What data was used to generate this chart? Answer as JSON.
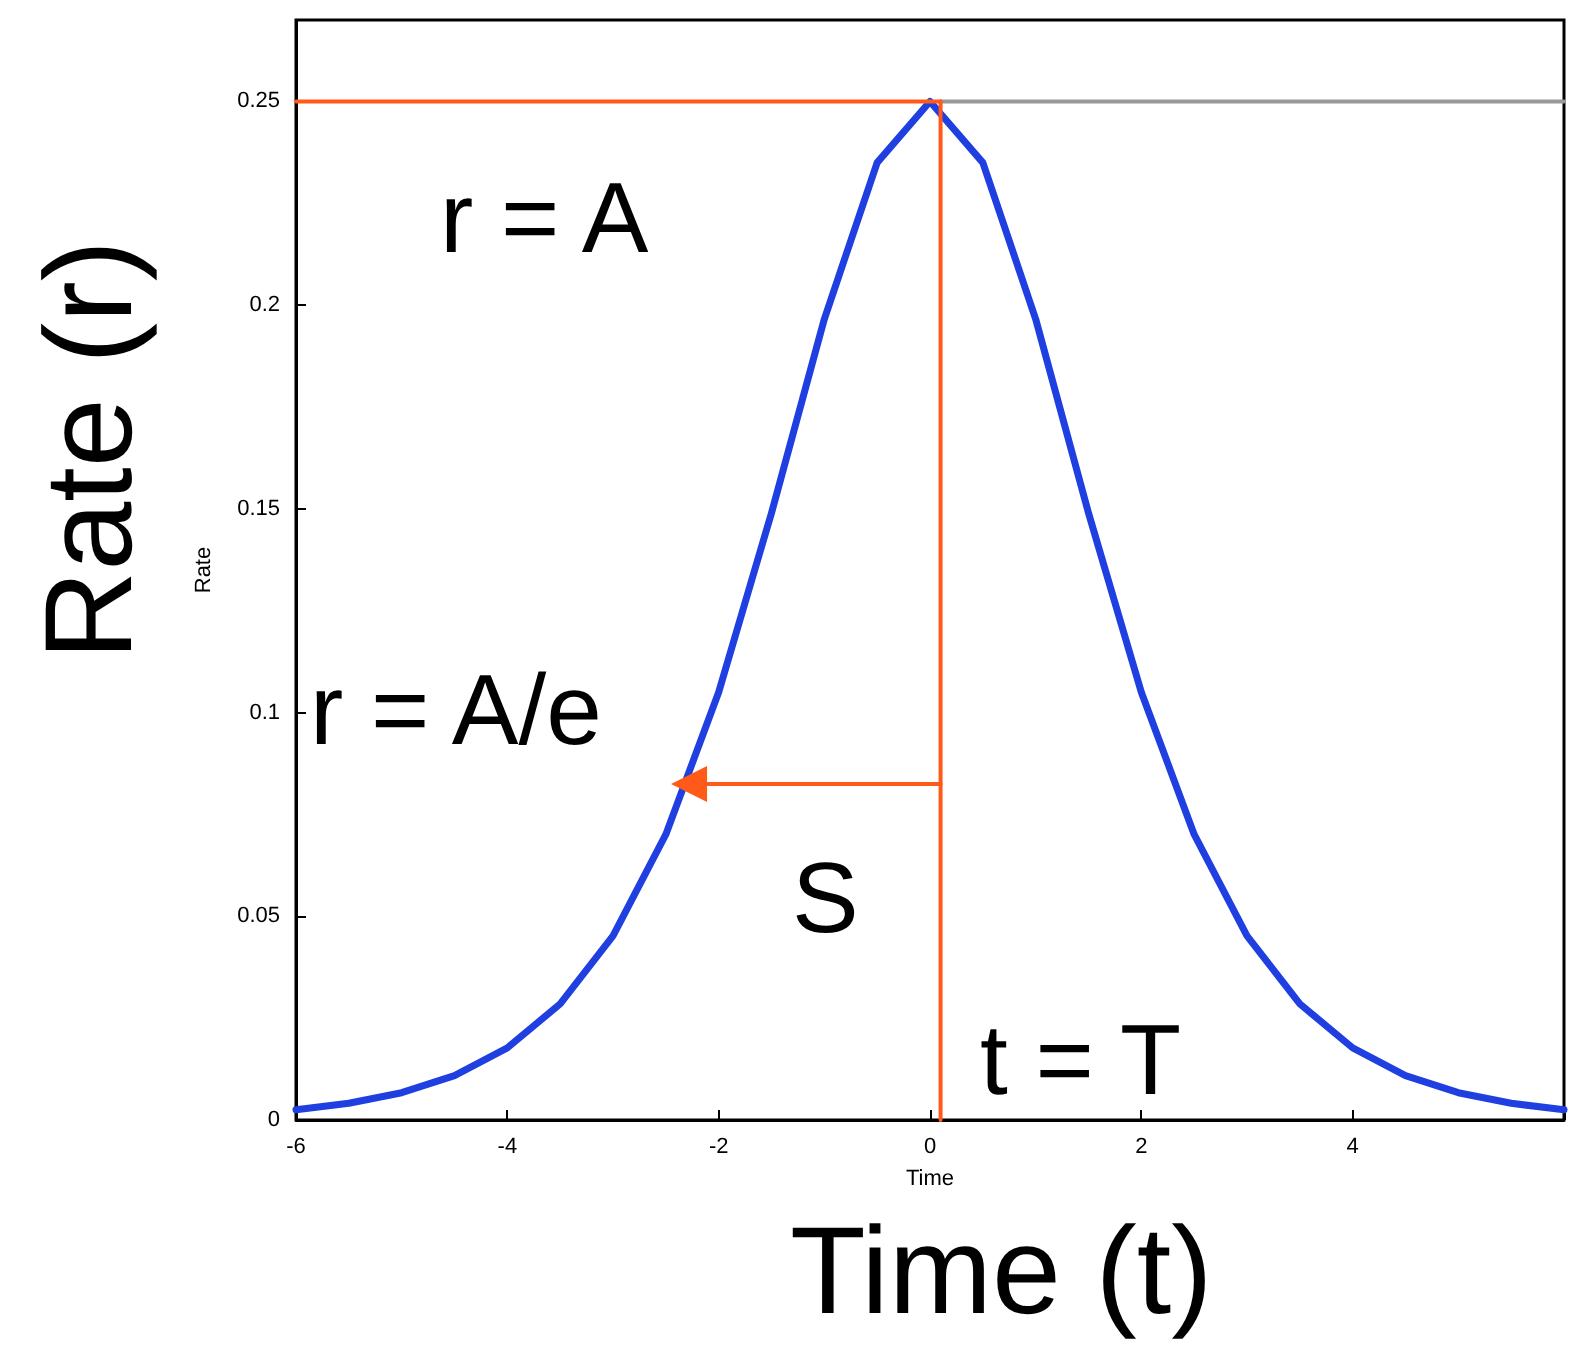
{
  "chart_data": {
    "type": "line",
    "xlabel": "Time",
    "ylabel": "Rate",
    "xlim": [
      -6,
      6
    ],
    "ylim": [
      0,
      0.27
    ],
    "xticks": [
      -6,
      -4,
      -2,
      0,
      2,
      4,
      {
        "value": 6,
        "label": null
      }
    ],
    "yticks": [
      0,
      0.05,
      0.1,
      0.15,
      0.2,
      0.25
    ],
    "series": [
      {
        "color": "#1f3fe0",
        "x": [
          -6,
          -5.5,
          -5,
          -4.5,
          -4,
          -3.5,
          -3,
          -2.5,
          -2,
          -1.5,
          -1,
          -0.5,
          0,
          0.5,
          1,
          1.5,
          2,
          2.5,
          3,
          3.5,
          4,
          4.5,
          5,
          5.5,
          6
        ],
        "values": [
          0.0025,
          0.0041,
          0.0067,
          0.0109,
          0.0177,
          0.0285,
          0.0452,
          0.0701,
          0.105,
          0.149,
          0.1966,
          0.235,
          0.25,
          0.235,
          0.1966,
          0.149,
          0.105,
          0.0701,
          0.0452,
          0.0285,
          0.0177,
          0.0109,
          0.0067,
          0.0041,
          0.0025
        ]
      },
      {
        "color": "#999999",
        "x": [
          0.1,
          6
        ],
        "values": [
          0.25,
          0.25
        ]
      },
      {
        "color": "#ff5a1a",
        "x": [
          -6,
          0.1
        ],
        "values": [
          0.25,
          0.25
        ]
      },
      {
        "color": "#ff5a1a",
        "x": [
          0.1,
          0.1
        ],
        "values": [
          0,
          0.25
        ]
      },
      {
        "color": "#ff5a1a",
        "x": [
          0.1,
          -2.28
        ],
        "values": [
          0.0825,
          0.0825
        ],
        "marker": "triangle"
      }
    ],
    "annotations": [
      "r = A",
      "r = A/e",
      "S",
      "t = T",
      "Rate (r)",
      "Time (t)"
    ]
  }
}
